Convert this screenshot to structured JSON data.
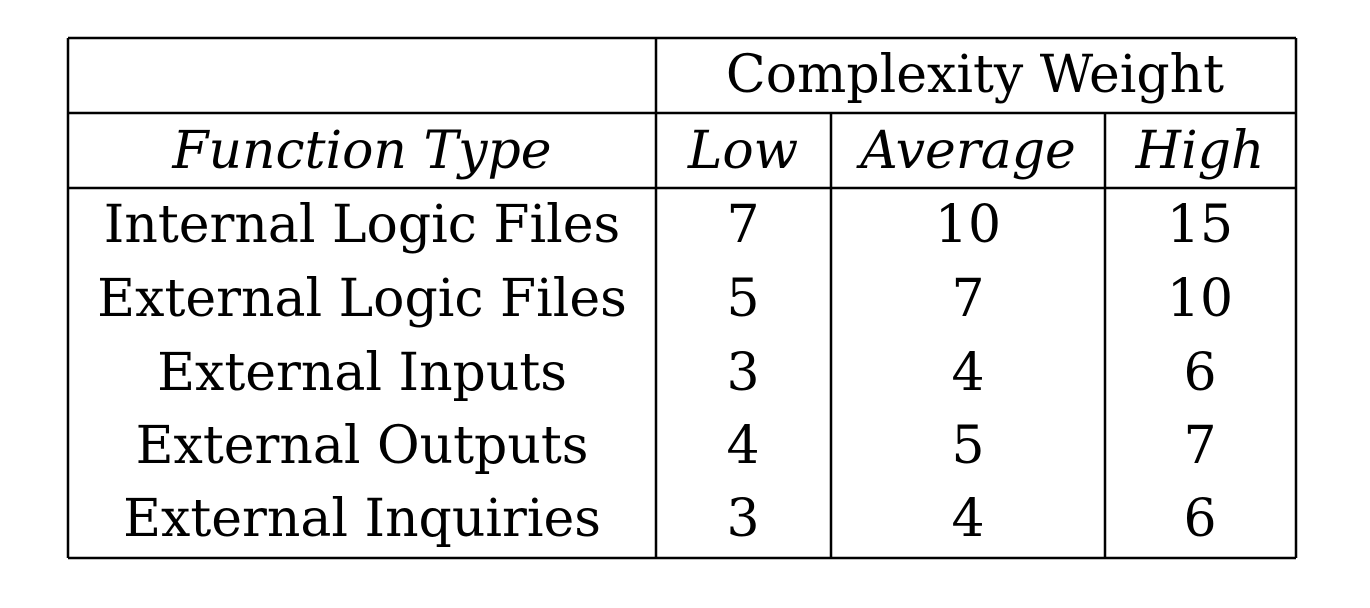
{
  "table": {
    "group_header": "Complexity Weight",
    "column_headers": [
      "Function Type",
      "Low",
      "Average",
      "High"
    ],
    "rows": [
      {
        "label": "Internal Logic Files",
        "low": "7",
        "average": "10",
        "high": "15"
      },
      {
        "label": "External Logic Files",
        "low": "5",
        "average": "7",
        "high": "10"
      },
      {
        "label": "External Inputs",
        "low": "3",
        "average": "4",
        "high": "6"
      },
      {
        "label": "External Outputs",
        "low": "4",
        "average": "5",
        "high": "7"
      },
      {
        "label": "External Inquiries",
        "low": "3",
        "average": "4",
        "high": "6"
      }
    ]
  }
}
